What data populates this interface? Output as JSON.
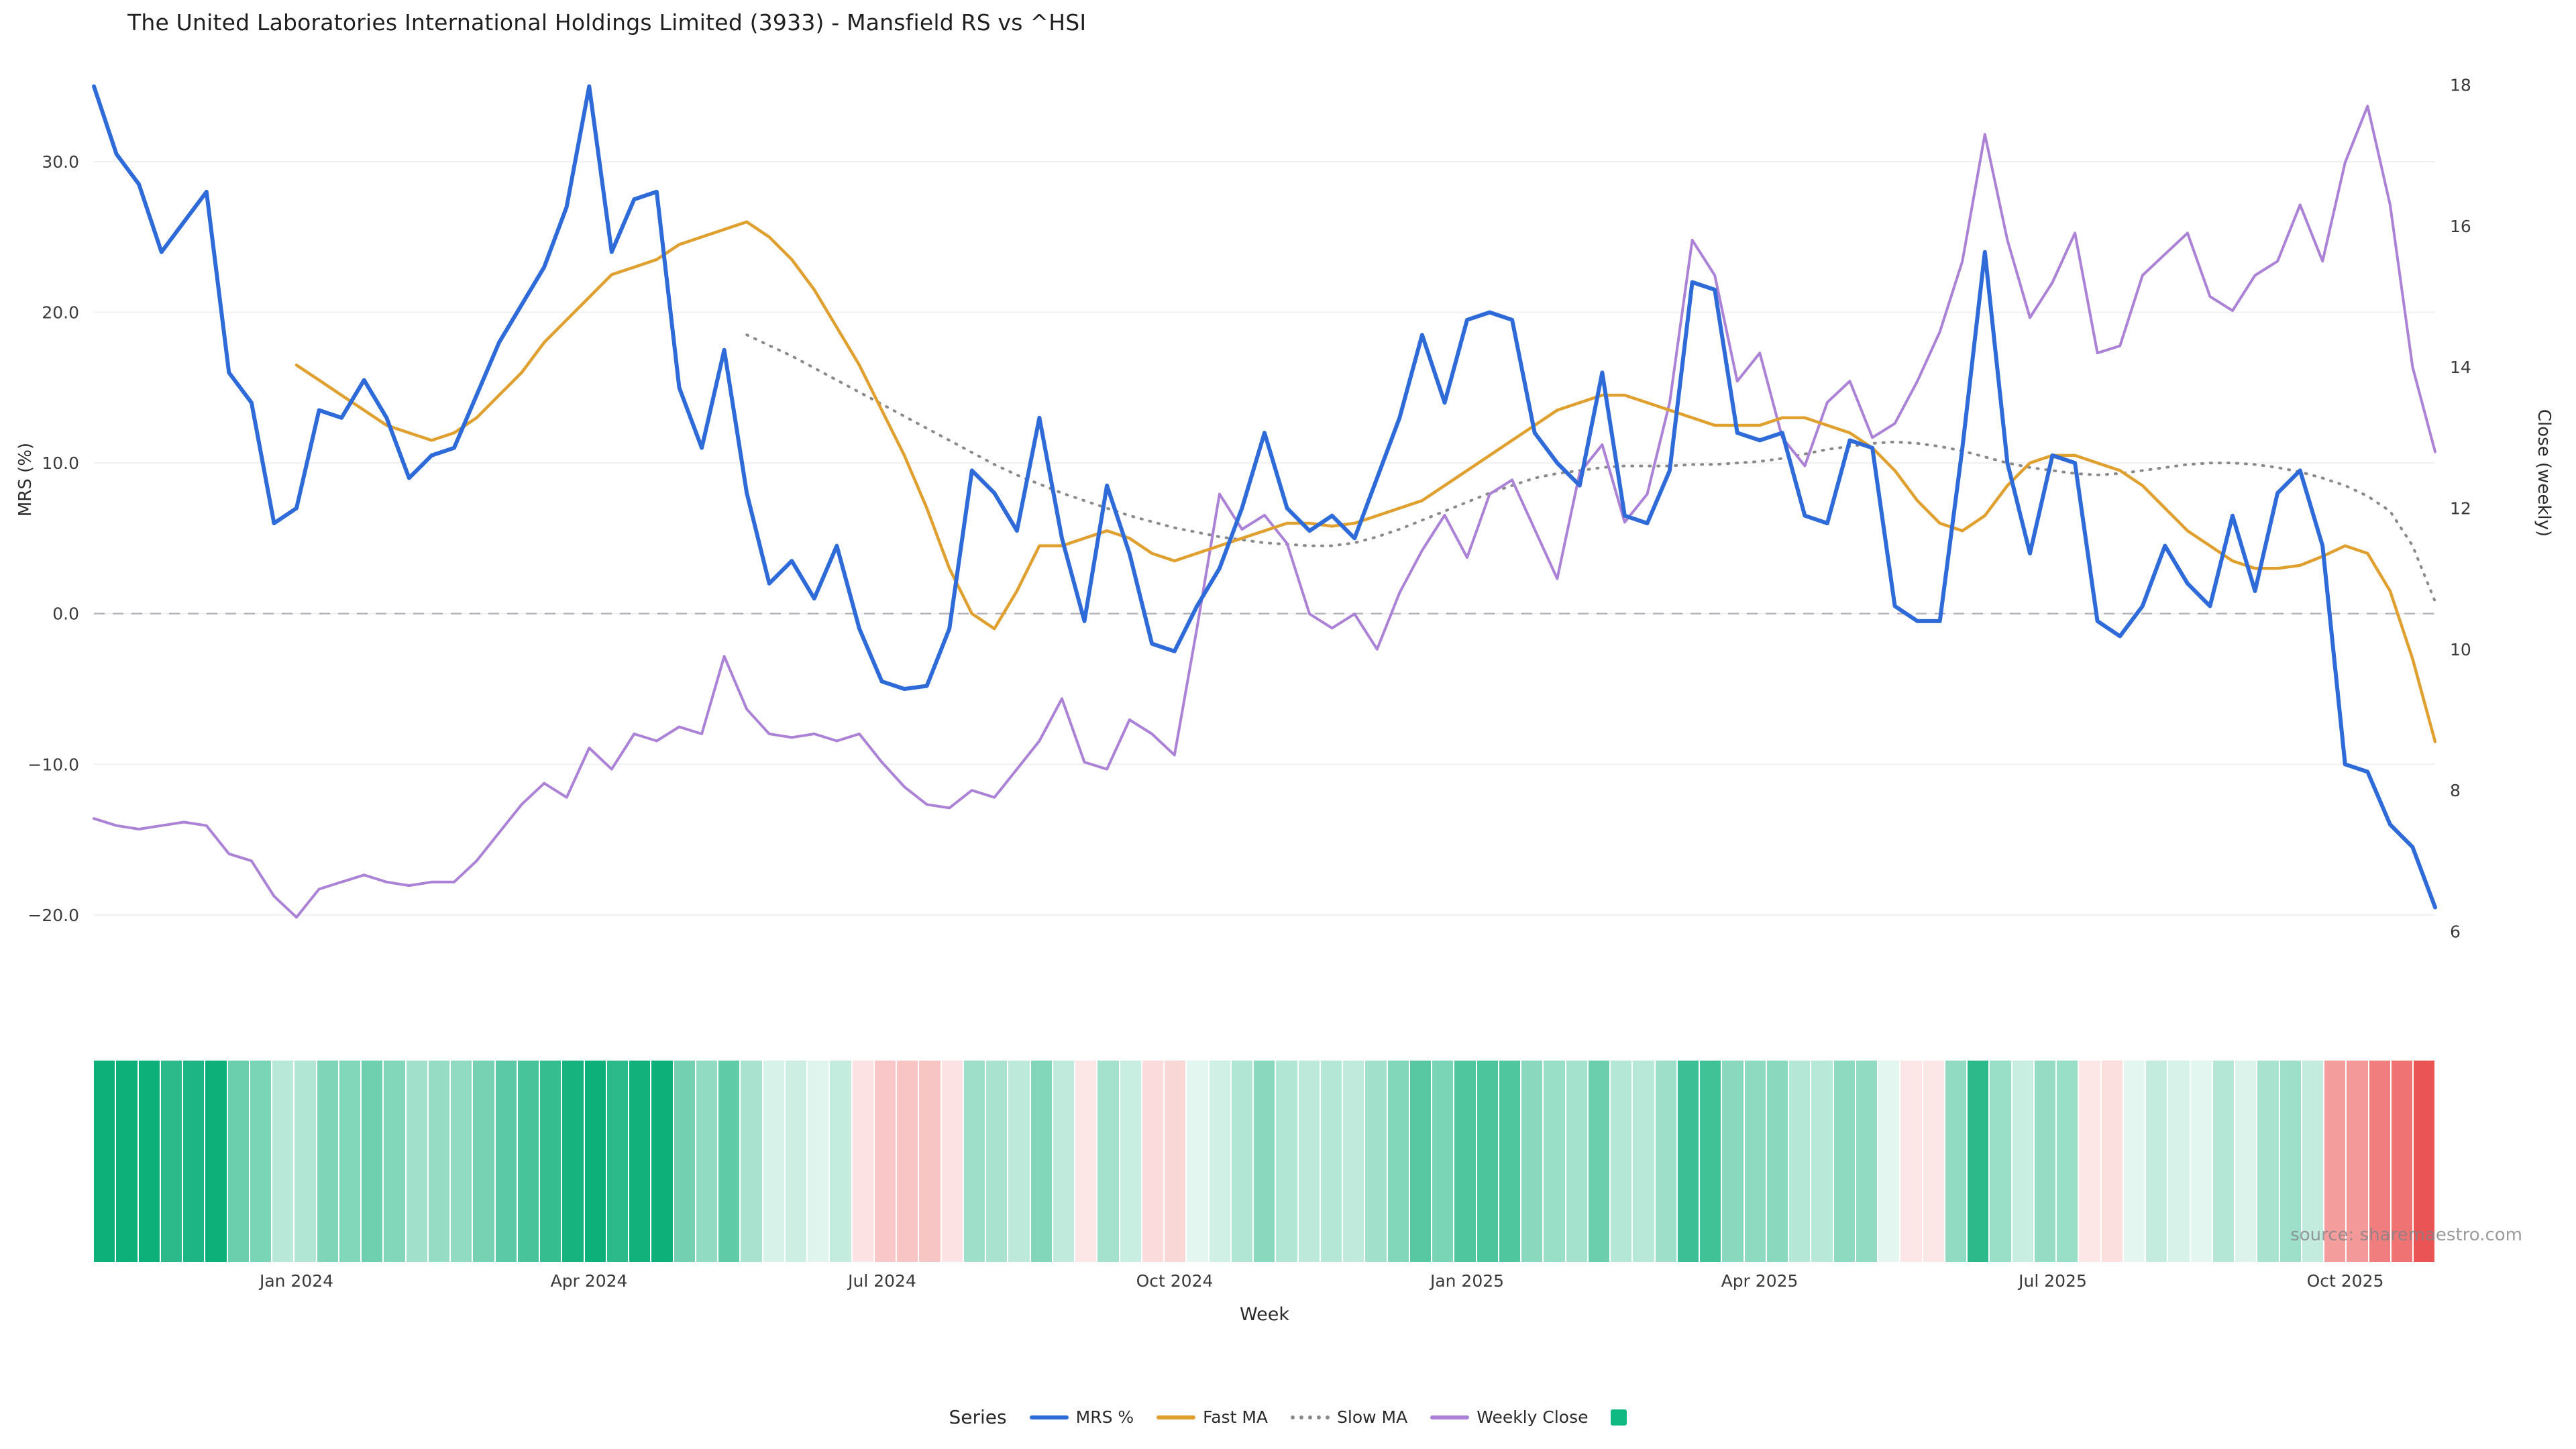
{
  "title": "The United Laboratories International Holdings Limited (3933) - Mansfield RS vs ^HSI",
  "source": "source: sharemaestro.com",
  "axes": {
    "left": {
      "label": "MRS (%)",
      "ticks": [
        "30.0",
        "20.0",
        "10.0",
        "0.0",
        "−10.0",
        "−20.0"
      ],
      "tick_values": [
        30,
        20,
        10,
        0,
        -10,
        -20
      ],
      "domain": [
        -22.5,
        36.5
      ]
    },
    "right": {
      "label": "Close (weekly)",
      "ticks": [
        "18",
        "16",
        "14",
        "12",
        "10",
        "8",
        "6"
      ],
      "tick_values": [
        18,
        16,
        14,
        12,
        10,
        8,
        6
      ],
      "domain": [
        5.7,
        18.3
      ]
    },
    "x": {
      "label": "Week",
      "tick_labels": [
        "Jan 2024",
        "Apr 2024",
        "Jul 2024",
        "Oct 2024",
        "Jan 2025",
        "Apr 2025",
        "Jul 2025",
        "Oct 2025"
      ],
      "tick_indices": [
        9,
        22,
        35,
        48,
        61,
        74,
        87,
        100
      ]
    }
  },
  "legend": {
    "title": "Series",
    "entries": [
      {
        "id": "mrs",
        "label": "MRS %",
        "color": "#2e6bd8",
        "style": "line"
      },
      {
        "id": "fast-ma",
        "label": "Fast MA",
        "color": "#e0a030",
        "style": "line"
      },
      {
        "id": "slow-ma",
        "label": "Slow MA",
        "color": "#8a8a8a",
        "style": "dotted"
      },
      {
        "id": "weekly-close",
        "label": "Weekly Close",
        "color": "#ab82d6",
        "style": "line"
      },
      {
        "id": "heatmap",
        "label": "",
        "color": "#10b981",
        "style": "square"
      }
    ]
  },
  "chart_data": {
    "type": "line",
    "x_unit": "week",
    "n_points": 105,
    "grid": "horizontal-light",
    "zero_line": 0,
    "series": [
      {
        "id": "mrs",
        "name": "MRS %",
        "axis": "left",
        "color": "#2e6bd8",
        "style": "solid",
        "width": 6,
        "values": [
          35,
          30.5,
          28.5,
          24,
          26,
          28,
          16,
          14,
          6,
          7,
          13.5,
          13,
          15.5,
          13,
          9,
          10.5,
          11,
          14.5,
          18,
          20.5,
          23,
          27,
          35,
          24,
          27.5,
          28,
          15,
          11,
          17.5,
          8,
          2,
          3.5,
          1,
          4.5,
          -1,
          -4.5,
          -5,
          -4.8,
          -1,
          9.5,
          8,
          5.5,
          13,
          5,
          -0.5,
          8.5,
          4,
          -2,
          -2.5,
          0.5,
          3,
          7,
          12,
          7,
          5.5,
          6.5,
          5,
          9,
          13,
          18.5,
          14,
          19.5,
          20,
          19.5,
          12,
          10,
          8.5,
          16,
          6.5,
          6,
          9.5,
          22,
          21.5,
          12,
          11.5,
          12,
          6.5,
          6,
          11.5,
          11,
          0.5,
          -0.5,
          -0.5,
          11,
          24,
          10,
          4,
          10.5,
          10,
          -0.5,
          -1.5,
          0.5,
          4.5,
          2,
          0.5,
          6.5,
          1.5,
          8,
          9.5,
          4.5,
          -10,
          -10.5,
          -14,
          -15.5,
          -19.5
        ]
      },
      {
        "id": "fast-ma",
        "name": "Fast MA",
        "axis": "left",
        "color": "#e0a030",
        "style": "solid",
        "width": 4.5,
        "values": [
          null,
          null,
          null,
          null,
          null,
          null,
          null,
          null,
          null,
          16.5,
          15.5,
          14.5,
          13.5,
          12.5,
          12,
          11.5,
          12,
          13,
          14.5,
          16,
          18,
          19.5,
          21,
          22.5,
          23,
          23.5,
          24.5,
          25,
          25.5,
          26,
          25,
          23.5,
          21.5,
          19,
          16.5,
          13.5,
          10.5,
          7,
          3,
          0,
          -1,
          1.5,
          4.5,
          4.5,
          5,
          5.5,
          5,
          4,
          3.5,
          4,
          4.5,
          5,
          5.5,
          6,
          6,
          5.8,
          6,
          6.5,
          7,
          7.5,
          8.5,
          9.5,
          10.5,
          11.5,
          12.5,
          13.5,
          14,
          14.5,
          14.5,
          14,
          13.5,
          13,
          12.5,
          12.5,
          12.5,
          13,
          13,
          12.5,
          12,
          11,
          9.5,
          7.5,
          6,
          5.5,
          6.5,
          8.5,
          10,
          10.5,
          10.5,
          10,
          9.5,
          8.5,
          7,
          5.5,
          4.5,
          3.5,
          3,
          3,
          3.2,
          3.8,
          4.5,
          4,
          1.5,
          -3,
          -8.5
        ]
      },
      {
        "id": "slow-ma",
        "name": "Slow MA",
        "axis": "left",
        "color": "#8a8a8a",
        "style": "dotted",
        "width": 4,
        "values": [
          null,
          null,
          null,
          null,
          null,
          null,
          null,
          null,
          null,
          null,
          null,
          null,
          null,
          null,
          null,
          null,
          null,
          null,
          null,
          null,
          null,
          null,
          null,
          null,
          null,
          null,
          null,
          null,
          null,
          18.5,
          17.8,
          17.1,
          16.3,
          15.5,
          14.7,
          13.9,
          13.1,
          12.3,
          11.5,
          10.7,
          9.9,
          9.2,
          8.6,
          8,
          7.5,
          7,
          6.5,
          6.1,
          5.7,
          5.4,
          5.1,
          4.9,
          4.7,
          4.6,
          4.5,
          4.5,
          4.7,
          5.1,
          5.6,
          6.2,
          6.8,
          7.4,
          8,
          8.5,
          9,
          9.3,
          9.5,
          9.7,
          9.8,
          9.8,
          9.8,
          9.9,
          9.9,
          10,
          10.1,
          10.3,
          10.6,
          10.9,
          11.1,
          11.3,
          11.4,
          11.3,
          11.1,
          10.8,
          10.4,
          10,
          9.7,
          9.5,
          9.3,
          9.2,
          9.3,
          9.5,
          9.7,
          9.9,
          10,
          10,
          9.9,
          9.7,
          9.4,
          9,
          8.5,
          7.8,
          6.8,
          4.5,
          0.8
        ]
      },
      {
        "id": "weekly-close",
        "name": "Weekly Close",
        "axis": "right",
        "color": "#ab82d6",
        "style": "solid",
        "width": 4,
        "values": [
          7.6,
          7.5,
          7.45,
          7.5,
          7.55,
          7.5,
          7.1,
          7,
          6.5,
          6.2,
          6.6,
          6.7,
          6.8,
          6.7,
          6.65,
          6.7,
          6.7,
          7,
          7.4,
          7.8,
          8.1,
          7.9,
          8.6,
          8.3,
          8.8,
          8.7,
          8.9,
          8.8,
          9.9,
          9.15,
          8.8,
          8.75,
          8.8,
          8.7,
          8.8,
          8.4,
          8.05,
          7.8,
          7.75,
          8,
          7.9,
          8.3,
          8.7,
          9.3,
          8.4,
          8.3,
          9,
          8.8,
          8.5,
          10.3,
          12.2,
          11.7,
          11.9,
          11.5,
          10.5,
          10.3,
          10.5,
          10,
          10.8,
          11.4,
          11.9,
          11.3,
          12.2,
          12.4,
          11.7,
          11,
          12.5,
          12.9,
          11.8,
          12.2,
          13.5,
          15.8,
          15.3,
          13.8,
          14.2,
          13,
          12.6,
          13.5,
          13.8,
          13,
          13.2,
          13.8,
          14.5,
          15.5,
          17.3,
          15.8,
          14.7,
          15.2,
          15.9,
          14.2,
          14.3,
          15.3,
          15.6,
          15.9,
          15,
          14.8,
          15.3,
          15.5,
          16.3,
          15.5,
          16.9,
          17.7,
          16.3,
          14,
          12.8
        ]
      }
    ],
    "heatmap": {
      "derived_from": "MRS %",
      "positive_rgb": [
        14,
        176,
        122
      ],
      "negative_rgb": [
        235,
        80,
        80
      ],
      "positive_saturation_at": 28,
      "negative_saturation_at": 20
    }
  }
}
